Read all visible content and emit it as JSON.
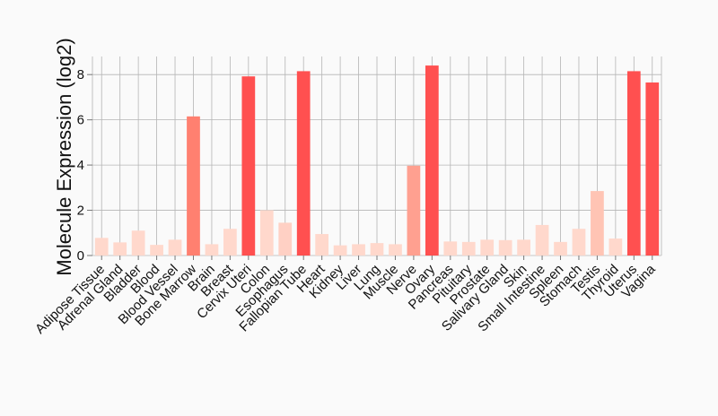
{
  "chart_data": {
    "type": "bar",
    "title": "",
    "xlabel": "",
    "ylabel": "Molecule Expression (log2)",
    "ylim": [
      0,
      8.8
    ],
    "yticks": [
      0,
      2,
      4,
      6,
      8
    ],
    "grid": true,
    "categories": [
      "Adipose Tissue",
      "Adrenal Gland",
      "Bladder",
      "Blood",
      "Blood Vessel",
      "Bone Marrow",
      "Brain",
      "Breast",
      "Cervix Uteri",
      "Colon",
      "Esophagus",
      "Fallopian Tube",
      "Heart",
      "Kidney",
      "Liver",
      "Lung",
      "Muscle",
      "Nerve",
      "Ovary",
      "Pancreas",
      "Pituitary",
      "Prostate",
      "Salivary Gland",
      "Skin",
      "Small Intestine",
      "Spleen",
      "Stomach",
      "Testis",
      "Thyroid",
      "Uterus",
      "Vagina"
    ],
    "values": [
      0.78,
      0.58,
      1.1,
      0.47,
      0.7,
      6.15,
      0.5,
      1.18,
      7.92,
      2.0,
      1.45,
      8.15,
      0.95,
      0.45,
      0.5,
      0.55,
      0.5,
      3.97,
      8.4,
      0.62,
      0.6,
      0.7,
      0.68,
      0.7,
      1.35,
      0.6,
      1.18,
      2.85,
      0.75,
      8.15,
      7.65
    ],
    "colors": [
      "#ffd8cc",
      "#ffd8cc",
      "#ffd8cc",
      "#ffd8cc",
      "#ffd8cc",
      "#ff8070",
      "#ffd8cc",
      "#ffd8cc",
      "#ff5050",
      "#ffd8cc",
      "#ffd0c4",
      "#ff5050",
      "#ffd8cc",
      "#ffd8cc",
      "#ffd8cc",
      "#ffd8cc",
      "#ffd8cc",
      "#ffa090",
      "#ff5050",
      "#ffd8cc",
      "#ffd8cc",
      "#ffd8cc",
      "#ffd8cc",
      "#ffd8cc",
      "#ffd8cc",
      "#ffd8cc",
      "#ffd8cc",
      "#ffc4b4",
      "#ffd8cc",
      "#ff5050",
      "#ff5050"
    ]
  }
}
